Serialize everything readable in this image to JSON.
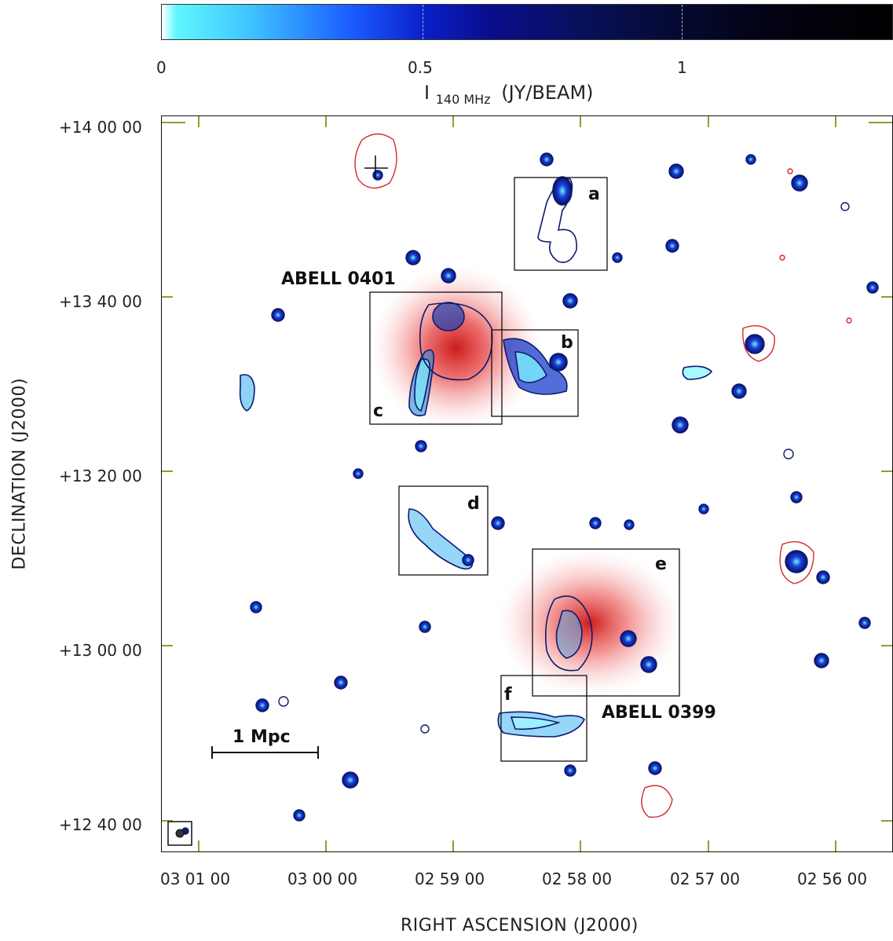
{
  "colorbar": {
    "ticks": [
      "0",
      "0.5",
      "1"
    ],
    "title_main": "I",
    "title_sub": "140 MHz",
    "title_unit": "(JY/BEAM)"
  },
  "axes": {
    "ylabel": "DECLINATION (J2000)",
    "xlabel": "RIGHT ASCENSION (J2000)",
    "yticks": [
      "+14 00 00",
      "+13 40 00",
      "+13 20 00",
      "+13 00 00",
      "+12 40 00"
    ],
    "xticks": [
      "03 01 00",
      "03 00 00",
      "02 59 00",
      "02 58 00",
      "02 57 00",
      "02 56 00"
    ]
  },
  "annotations": {
    "cluster_north": "ABELL 0401",
    "cluster_south": "ABELL 0399",
    "scalebar": "1 Mpc",
    "boxes": [
      "a",
      "b",
      "c",
      "d",
      "e",
      "f"
    ]
  },
  "colors": {
    "contour_blue": "#0d1a6e",
    "contour_red": "#d42a2a",
    "halo_red": "#e01414",
    "axis_tick": "#9a9a30"
  }
}
